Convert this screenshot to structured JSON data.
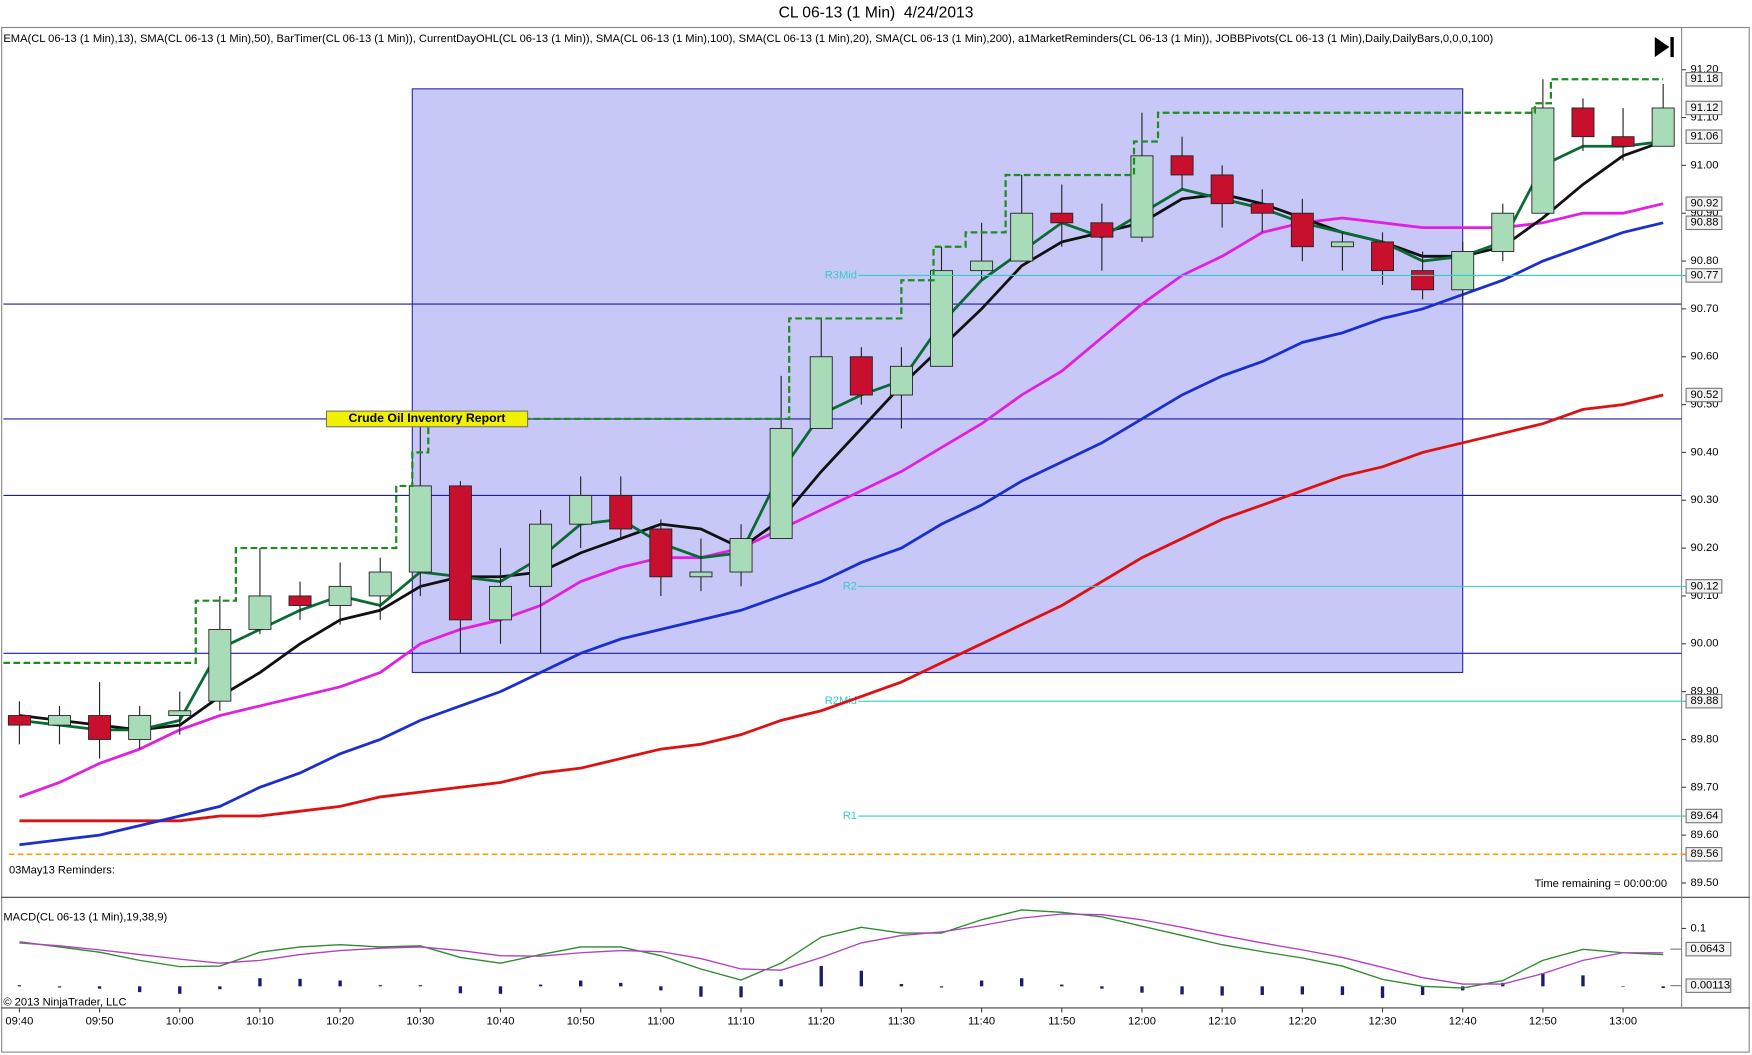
{
  "chart_data": [
    {
      "type": "candlestick",
      "title": "CL 06-13 (1 Min)  4/24/2013",
      "subtitle": "EMA(CL 06-13 (1 Min),13), SMA(CL 06-13 (1 Min),50), BarTimer(CL 06-13 (1 Min)), CurrentDayOHL(CL 06-13 (1 Min)), SMA(CL 06-13 (1 Min),100), SMA(CL 06-13 (1 Min),20), SMA(CL 06-13 (1 Min),200), a1MarketReminders(CL 06-13 (1 Min)), JOBBPivots(CL 06-13 (1 Min),Daily,DailyBars,0,0,0,100)",
      "notes": [
        "03May13 Reminders:",
        "Time remaining = 00:00:00"
      ],
      "x": [
        580,
        585,
        590,
        595,
        600,
        605,
        610,
        615,
        620,
        625,
        630,
        635,
        640,
        645,
        650,
        655,
        660,
        665,
        670,
        675,
        680,
        685,
        690,
        695,
        700,
        705,
        710,
        715,
        720,
        725,
        730,
        735,
        740,
        745,
        750,
        755,
        760,
        765,
        770,
        775,
        780,
        785
      ],
      "candles": {
        "up_color": "#a8dcb8",
        "down_color": "#c8102e",
        "open": [
          89.85,
          89.83,
          89.85,
          89.8,
          89.85,
          89.88,
          90.03,
          90.1,
          90.08,
          90.1,
          90.15,
          90.33,
          90.05,
          90.12,
          90.25,
          90.31,
          90.24,
          90.14,
          90.15,
          90.22,
          90.45,
          90.6,
          90.52,
          90.58,
          90.78,
          90.8,
          90.9,
          90.88,
          90.85,
          91.02,
          90.98,
          90.92,
          90.9,
          90.83,
          90.84,
          90.78,
          90.74,
          90.82,
          90.9,
          91.12,
          91.06,
          91.04
        ],
        "high": [
          89.88,
          89.87,
          89.92,
          89.87,
          89.9,
          90.1,
          90.2,
          90.13,
          90.17,
          90.18,
          90.47,
          90.34,
          90.2,
          90.28,
          90.35,
          90.35,
          90.26,
          90.22,
          90.25,
          90.56,
          90.68,
          90.62,
          90.62,
          90.83,
          90.88,
          90.98,
          90.96,
          90.92,
          91.11,
          91.06,
          91.0,
          90.95,
          90.93,
          90.86,
          90.86,
          90.82,
          90.84,
          90.92,
          91.18,
          91.14,
          91.12,
          91.17
        ],
        "low": [
          89.79,
          89.79,
          89.76,
          89.78,
          89.81,
          89.86,
          90.02,
          90.05,
          90.04,
          90.05,
          90.1,
          89.98,
          90.0,
          89.98,
          90.2,
          90.22,
          90.1,
          90.11,
          90.12,
          90.22,
          90.45,
          90.5,
          90.45,
          90.58,
          90.76,
          90.8,
          90.83,
          90.78,
          90.84,
          90.95,
          90.87,
          90.86,
          90.8,
          90.78,
          90.75,
          90.72,
          90.72,
          90.8,
          90.9,
          91.03,
          91.01,
          91.04
        ],
        "close": [
          89.83,
          89.85,
          89.8,
          89.85,
          89.86,
          90.03,
          90.1,
          90.08,
          90.12,
          90.15,
          90.33,
          90.05,
          90.12,
          90.25,
          90.31,
          90.24,
          90.14,
          90.15,
          90.22,
          90.45,
          90.6,
          90.52,
          90.58,
          90.78,
          90.8,
          90.9,
          90.88,
          90.85,
          91.02,
          90.98,
          90.92,
          90.9,
          90.83,
          90.84,
          90.78,
          90.74,
          90.82,
          90.9,
          91.12,
          91.06,
          91.04,
          91.12
        ]
      },
      "series": [
        {
          "color": "#dd1111",
          "values": [
            89.63,
            89.63,
            89.63,
            89.63,
            89.63,
            89.64,
            89.64,
            89.65,
            89.66,
            89.68,
            89.69,
            89.7,
            89.71,
            89.73,
            89.74,
            89.76,
            89.78,
            89.79,
            89.81,
            89.84,
            89.86,
            89.89,
            89.92,
            89.96,
            90.0,
            90.04,
            90.08,
            90.13,
            90.18,
            90.22,
            90.26,
            90.29,
            90.32,
            90.35,
            90.37,
            90.4,
            90.42,
            90.44,
            90.46,
            90.49,
            90.5,
            90.52
          ]
        },
        {
          "color": "#1a2fcc",
          "values": [
            89.58,
            89.59,
            89.6,
            89.62,
            89.64,
            89.66,
            89.7,
            89.73,
            89.77,
            89.8,
            89.84,
            89.87,
            89.9,
            89.94,
            89.98,
            90.01,
            90.03,
            90.05,
            90.07,
            90.1,
            90.13,
            90.17,
            90.2,
            90.25,
            90.29,
            90.34,
            90.38,
            90.42,
            90.47,
            90.52,
            90.56,
            90.59,
            90.63,
            90.65,
            90.68,
            90.7,
            90.73,
            90.76,
            90.8,
            90.83,
            90.86,
            90.88
          ]
        },
        {
          "color": "#e020e0",
          "values": [
            89.68,
            89.71,
            89.75,
            89.78,
            89.82,
            89.85,
            89.87,
            89.89,
            89.91,
            89.94,
            90.0,
            90.03,
            90.05,
            90.08,
            90.13,
            90.16,
            90.18,
            90.18,
            90.2,
            90.24,
            90.28,
            90.32,
            90.36,
            90.41,
            90.46,
            90.52,
            90.57,
            90.64,
            90.71,
            90.77,
            90.81,
            90.86,
            90.88,
            90.89,
            90.88,
            90.87,
            90.87,
            90.87,
            90.88,
            90.9,
            90.9,
            90.92
          ]
        },
        {
          "color": "#111111",
          "values": [
            89.85,
            89.84,
            89.83,
            89.82,
            89.83,
            89.89,
            89.94,
            90.0,
            90.05,
            90.07,
            90.12,
            90.14,
            90.14,
            90.15,
            90.19,
            90.22,
            90.25,
            90.24,
            90.2,
            90.26,
            90.36,
            90.45,
            90.54,
            90.62,
            90.7,
            90.79,
            90.84,
            90.86,
            90.88,
            90.93,
            90.94,
            90.92,
            90.89,
            90.86,
            90.84,
            90.81,
            90.81,
            90.83,
            90.89,
            90.96,
            91.02,
            91.05
          ]
        },
        {
          "color": "#0b6b34",
          "values": [
            89.84,
            89.83,
            89.82,
            89.82,
            89.84,
            89.99,
            90.03,
            90.07,
            90.1,
            90.08,
            90.15,
            90.14,
            90.13,
            90.18,
            90.25,
            90.26,
            90.21,
            90.18,
            90.19,
            90.36,
            90.48,
            90.52,
            90.55,
            90.67,
            90.76,
            90.82,
            90.88,
            90.85,
            90.9,
            90.95,
            90.93,
            90.91,
            90.88,
            90.86,
            90.84,
            90.8,
            90.81,
            90.84,
            91.0,
            91.04,
            91.04,
            91.05
          ]
        }
      ],
      "day_high": {
        "color": "#1e8c1e",
        "x": [
          578,
          602,
          602,
          607,
          607,
          627,
          627,
          629,
          629,
          631,
          631,
          676,
          676,
          690,
          690,
          694,
          694,
          698,
          698,
          703,
          703,
          719,
          719,
          722,
          722,
          769,
          769,
          771,
          771,
          785
        ],
        "y": [
          89.96,
          89.96,
          90.09,
          90.09,
          90.2,
          90.2,
          90.33,
          90.33,
          90.4,
          90.4,
          90.47,
          90.47,
          90.68,
          90.68,
          90.76,
          90.76,
          90.83,
          90.83,
          90.86,
          90.86,
          90.98,
          90.98,
          91.05,
          91.05,
          91.11,
          91.11,
          91.13,
          91.13,
          91.18,
          91.18
        ]
      },
      "box": {
        "color": "#c8c8f8",
        "x": [
          629,
          760
        ],
        "y": [
          89.94,
          91.16
        ]
      },
      "levels": {
        "color": "#1c1ca0",
        "values": [
          90.71,
          90.47,
          90.31,
          89.98
        ]
      },
      "pivot_color": "#33cccc",
      "pivots": [
        {
          "label": "R3Mid",
          "value": 90.77
        },
        {
          "label": "R2",
          "value": 90.12
        },
        {
          "label": "R2Mid",
          "value": 89.88
        },
        {
          "label": "R1",
          "value": 89.64
        }
      ],
      "reminder_level": {
        "value": 89.56,
        "color": "#ff9900"
      },
      "annotation": {
        "text": "Crude Oil Inventory Report",
        "x": 630,
        "y": 90.47
      },
      "price_markers": [
        91.18,
        91.12,
        91.06,
        90.92,
        90.88,
        90.77,
        90.52,
        90.12,
        89.88,
        89.64,
        89.56
      ],
      "xlim": [
        578,
        787.3
      ],
      "xticks": [
        {
          "value": 580,
          "label": "09:40"
        },
        {
          "value": 590,
          "label": "09:50"
        },
        {
          "value": 600,
          "label": "10:00"
        },
        {
          "value": 610,
          "label": "10:10"
        },
        {
          "value": 620,
          "label": "10:20"
        },
        {
          "value": 630,
          "label": "10:30"
        },
        {
          "value": 640,
          "label": "10:40"
        },
        {
          "value": 650,
          "label": "10:50"
        },
        {
          "value": 660,
          "label": "11:00"
        },
        {
          "value": 670,
          "label": "11:10"
        },
        {
          "value": 680,
          "label": "11:20"
        },
        {
          "value": 690,
          "label": "11:30"
        },
        {
          "value": 700,
          "label": "11:40"
        },
        {
          "value": 710,
          "label": "11:50"
        },
        {
          "value": 720,
          "label": "12:00"
        },
        {
          "value": 730,
          "label": "12:10"
        },
        {
          "value": 740,
          "label": "12:20"
        },
        {
          "value": 750,
          "label": "12:30"
        },
        {
          "value": 760,
          "label": "12:40"
        },
        {
          "value": 770,
          "label": "12:50"
        },
        {
          "value": 780,
          "label": "13:00"
        }
      ],
      "ylim": [
        89.477,
        91.217
      ],
      "yticks": [
        {
          "value": 89.5,
          "label": "89.50"
        },
        {
          "value": 89.6,
          "label": "89.60"
        },
        {
          "value": 89.7,
          "label": "89.70"
        },
        {
          "value": 89.8,
          "label": "89.80"
        },
        {
          "value": 89.9,
          "label": "89.90"
        },
        {
          "value": 90.0,
          "label": "90.00"
        },
        {
          "value": 90.1,
          "label": "90.10"
        },
        {
          "value": 90.2,
          "label": "90.20"
        },
        {
          "value": 90.3,
          "label": "90.30"
        },
        {
          "value": 90.4,
          "label": "90.40"
        },
        {
          "value": 90.5,
          "label": "90.50"
        },
        {
          "value": 90.6,
          "label": "90.60"
        },
        {
          "value": 90.7,
          "label": "90.70"
        },
        {
          "value": 90.8,
          "label": "90.80"
        },
        {
          "value": 90.9,
          "label": "90.90"
        },
        {
          "value": 91.0,
          "label": "91.00"
        },
        {
          "value": 91.1,
          "label": "91.10"
        },
        {
          "value": 91.2,
          "label": "91.20"
        }
      ]
    },
    {
      "type": "macd",
      "title": "MACD(CL 06-13 (1 Min),19,38,9)",
      "x": [
        580,
        585,
        590,
        595,
        600,
        605,
        610,
        615,
        620,
        625,
        630,
        635,
        640,
        645,
        650,
        655,
        660,
        665,
        670,
        675,
        680,
        685,
        690,
        695,
        700,
        705,
        710,
        715,
        720,
        725,
        730,
        735,
        740,
        745,
        750,
        755,
        760,
        765,
        770,
        775,
        780,
        785
      ],
      "series": [
        {
          "color": "#2e8b2e",
          "values": [
            0.077,
            0.068,
            0.059,
            0.045,
            0.034,
            0.035,
            0.059,
            0.068,
            0.072,
            0.068,
            0.07,
            0.05,
            0.04,
            0.055,
            0.068,
            0.068,
            0.053,
            0.03,
            0.011,
            0.04,
            0.085,
            0.102,
            0.092,
            0.092,
            0.115,
            0.132,
            0.128,
            0.12,
            0.104,
            0.088,
            0.072,
            0.06,
            0.049,
            0.035,
            0.012,
            0.0,
            -0.003,
            0.01,
            0.045,
            0.064,
            0.058,
            0.055
          ]
        },
        {
          "color": "#b040c0",
          "values": [
            0.075,
            0.07,
            0.063,
            0.055,
            0.047,
            0.04,
            0.045,
            0.055,
            0.062,
            0.066,
            0.068,
            0.062,
            0.053,
            0.052,
            0.058,
            0.062,
            0.06,
            0.048,
            0.03,
            0.028,
            0.05,
            0.075,
            0.088,
            0.094,
            0.105,
            0.118,
            0.125,
            0.124,
            0.115,
            0.102,
            0.088,
            0.075,
            0.063,
            0.05,
            0.033,
            0.015,
            0.004,
            0.004,
            0.022,
            0.045,
            0.058,
            0.058
          ]
        }
      ],
      "histogram": {
        "color": "#1a1a6e",
        "values": [
          0.002,
          -0.002,
          -0.004,
          -0.01,
          -0.013,
          -0.005,
          0.014,
          0.013,
          0.01,
          0.002,
          0.002,
          -0.012,
          -0.013,
          0.003,
          0.01,
          0.006,
          -0.007,
          -0.018,
          -0.019,
          0.012,
          0.035,
          0.027,
          0.004,
          -0.002,
          0.01,
          0.014,
          0.003,
          -0.004,
          -0.011,
          -0.014,
          -0.016,
          -0.015,
          -0.014,
          -0.015,
          -0.021,
          -0.015,
          -0.007,
          0.006,
          0.023,
          0.019,
          0.0,
          -0.003
        ]
      },
      "ylim": [
        -0.02,
        0.15
      ],
      "yticks": [
        0.1
      ],
      "markers": [
        0.0643,
        0.00113
      ]
    }
  ],
  "footer": {
    "copyright": "© 2013 NinjaTrader, LLC"
  }
}
